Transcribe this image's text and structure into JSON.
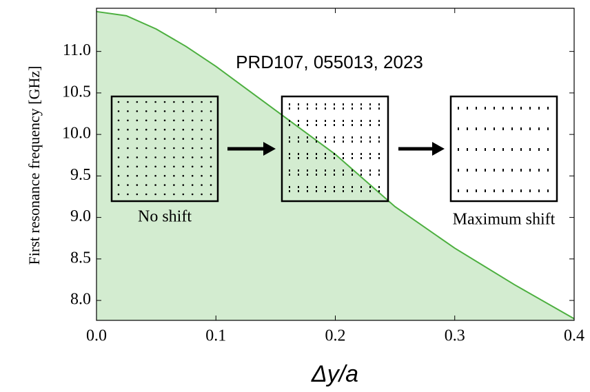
{
  "chart_data": {
    "type": "area",
    "y_label": "First resonance frequency [GHz]",
    "x_label": "Δy/a",
    "annotations": [
      "PRD107, 055013, 2023",
      "No shift",
      "Maximum shift"
    ],
    "x": [
      0.0,
      0.025,
      0.05,
      0.075,
      0.1,
      0.15,
      0.2,
      0.25,
      0.3,
      0.35,
      0.4
    ],
    "series": [
      {
        "color": "#4caf3f",
        "values": [
          11.48,
          11.43,
          11.27,
          11.06,
          10.82,
          10.29,
          9.76,
          9.13,
          8.63,
          8.19,
          7.78
        ]
      }
    ],
    "fill_color": "#d3ecd0",
    "xlim": [
      0.0,
      0.4
    ],
    "ylim": [
      7.76,
      11.52
    ],
    "xticks": [
      {
        "value": 0.0,
        "label": "0.0"
      },
      0.1,
      0.2,
      0.3,
      0.4
    ],
    "yticks": [
      {
        "value": 8.0,
        "label": "8.0"
      },
      8.5,
      {
        "value": 9.0,
        "label": "9.0"
      },
      9.5,
      {
        "value": 10.0,
        "label": "10.0"
      },
      10.5,
      {
        "value": 11.0,
        "label": "11.0"
      }
    ]
  }
}
